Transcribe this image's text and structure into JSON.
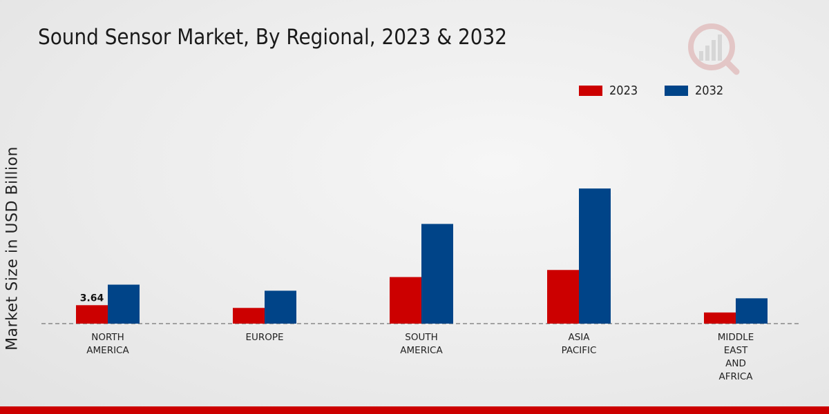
{
  "chart_data": {
    "type": "bar",
    "title": "Sound Sensor Market, By Regional, 2023 & 2032",
    "xlabel": "",
    "ylabel": "Market Size in USD Billion",
    "categories": [
      "NORTH\nAMERICA",
      "EUROPE",
      "SOUTH\nAMERICA",
      "ASIA\nPACIFIC",
      "MIDDLE\nEAST\nAND\nAFRICA"
    ],
    "series": [
      {
        "name": "2023",
        "color": "#cc0000",
        "values": [
          3.64,
          3.1,
          9.2,
          10.6,
          2.2
        ]
      },
      {
        "name": "2032",
        "color": "#004488",
        "values": [
          7.7,
          6.5,
          19.7,
          26.7,
          5.0
        ]
      }
    ],
    "data_labels": [
      {
        "series": 0,
        "index": 0,
        "text": "3.64"
      }
    ],
    "ylim": [
      0,
      30
    ],
    "grid": false,
    "legend": "top-right"
  }
}
